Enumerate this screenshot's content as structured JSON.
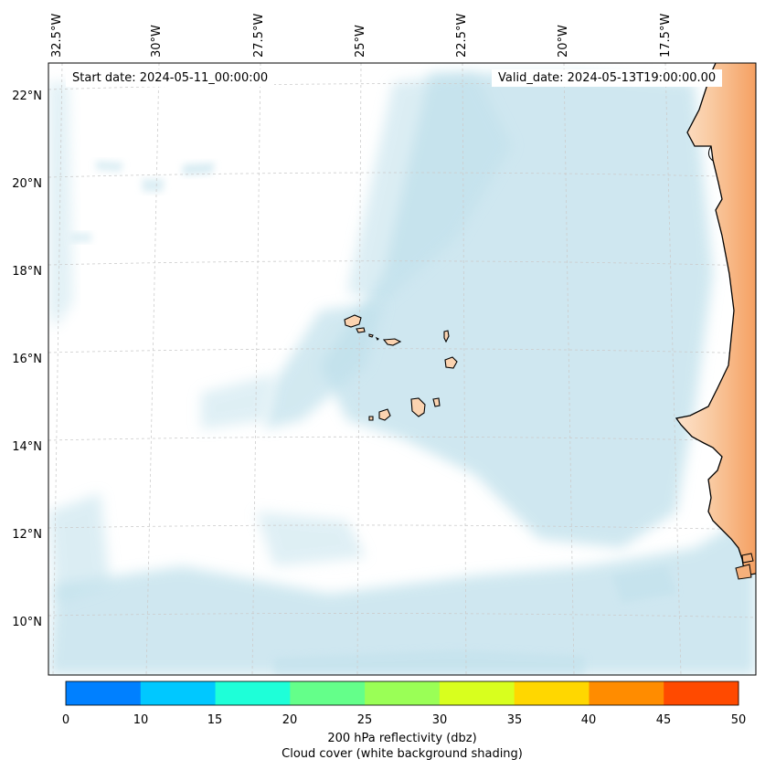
{
  "map": {
    "start_date": "Start date: 2024-05-11_00:00:00",
    "valid_date": "Valid_date: 2024-05-13T19:00:00.00",
    "lon_labels": [
      "32.5°W",
      "30°W",
      "27.5°W",
      "25°W",
      "22.5°W",
      "20°W",
      "17.5°W"
    ],
    "lat_labels": [
      "22°N",
      "20°N",
      "18°N",
      "16°N",
      "14°N",
      "12°N",
      "10°N"
    ],
    "colors": {
      "ocean": "#ffffff",
      "cloud": "#b9dde9",
      "land_light": "#fbd7b6",
      "land_orange": "#f5a56a",
      "coastline": "#000000",
      "gridline": "#c8c8c8"
    }
  },
  "colorbar": {
    "ticks": [
      "0",
      "10",
      "15",
      "20",
      "25",
      "30",
      "35",
      "40",
      "45",
      "50"
    ],
    "colors": [
      "#0080ff",
      "#00c8ff",
      "#1effd8",
      "#64ff8a",
      "#9aff56",
      "#d8ff1e",
      "#ffd700",
      "#ff8c00",
      "#ff4a00"
    ],
    "label": "200 hPa reflectivity (dbz)",
    "sublabel": "Cloud cover (white background shading)"
  }
}
